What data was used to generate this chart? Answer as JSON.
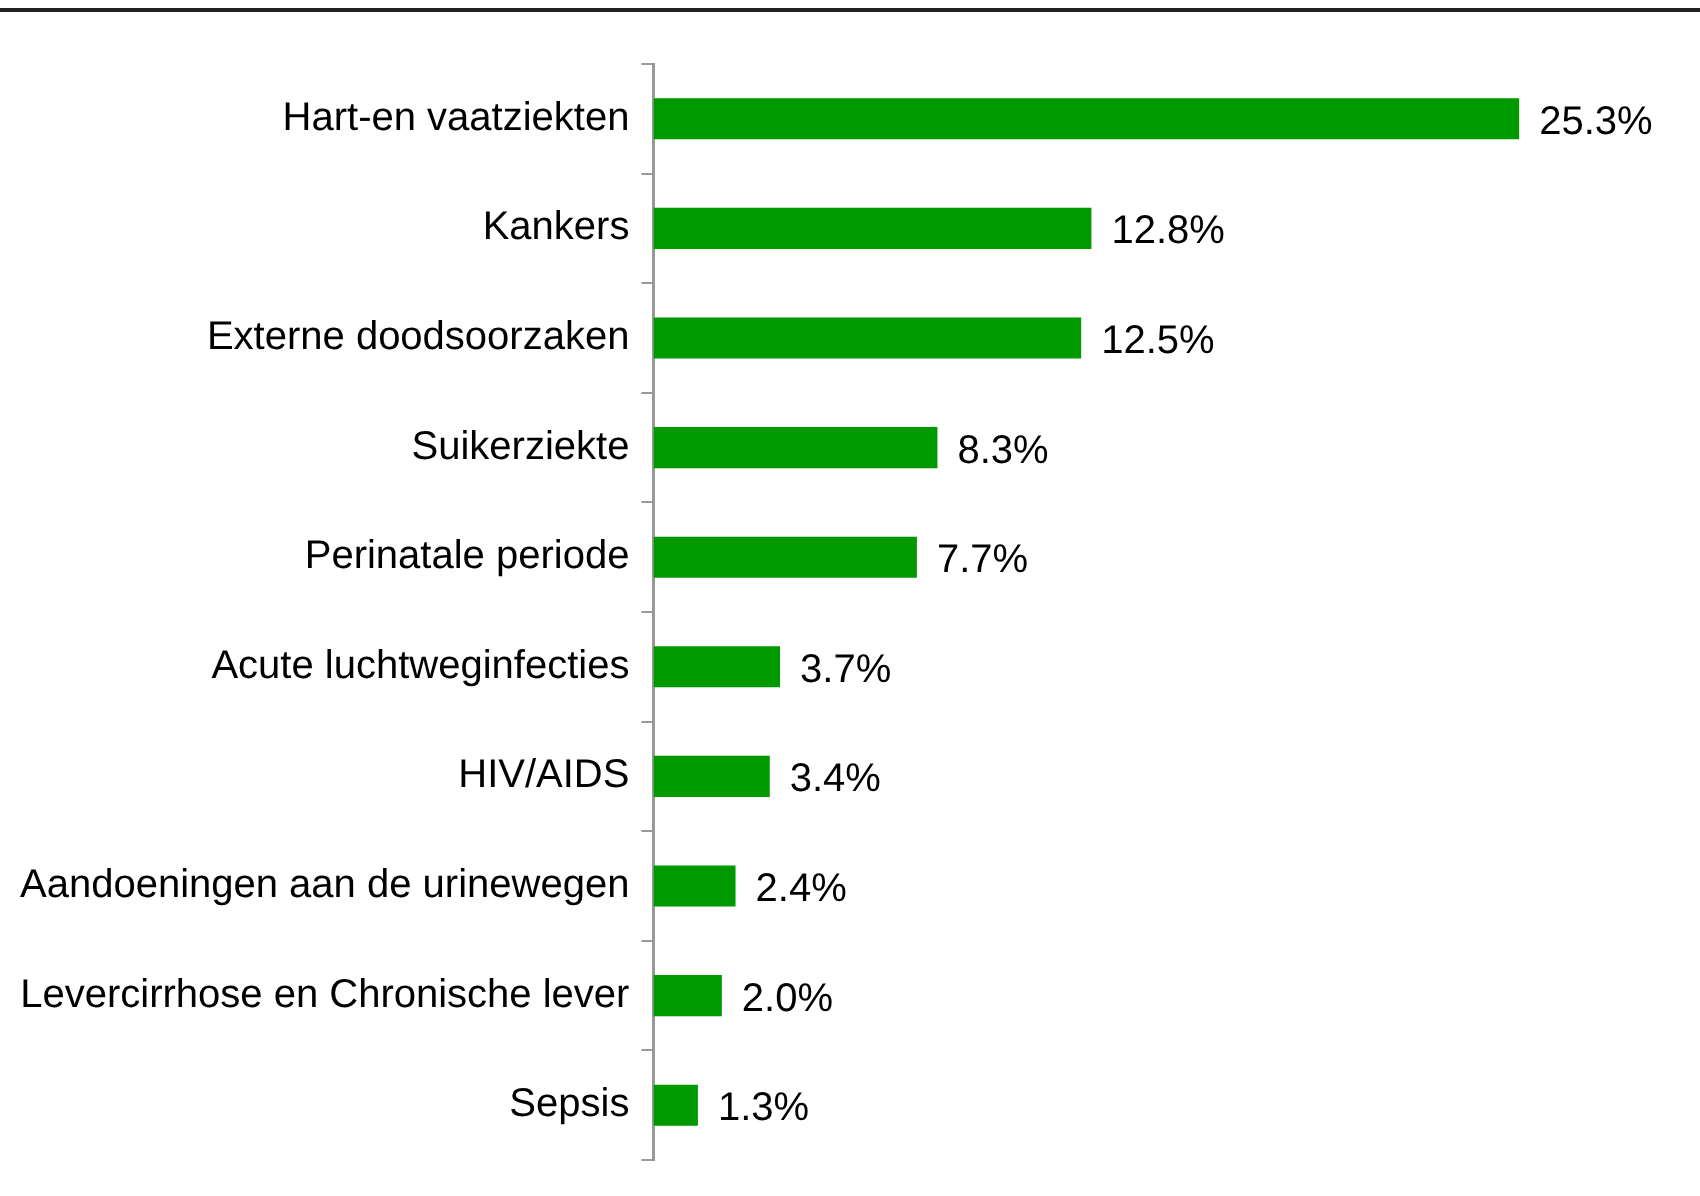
{
  "chart_data": {
    "type": "bar",
    "orientation": "horizontal",
    "categories": [
      "Hart-en vaatziekten",
      "Kankers",
      "Externe doodsoorzaken",
      "Suikerziekte",
      "Perinatale periode",
      "Acute luchtweginfecties",
      "HIV/AIDS",
      "Aandoeningen aan de urinewegen",
      "Levercirrhose en Chronische lever",
      "Sepsis"
    ],
    "values": [
      25.3,
      12.8,
      12.5,
      8.3,
      7.7,
      3.7,
      3.4,
      2.4,
      2.0,
      1.3
    ],
    "value_labels": [
      "25.3%",
      "12.8%",
      "12.5%",
      "8.3%",
      "7.7%",
      "3.7%",
      "3.4%",
      "2.4%",
      "2.0%",
      "1.3%"
    ],
    "color": "#009900",
    "legend": false,
    "grid": false
  }
}
